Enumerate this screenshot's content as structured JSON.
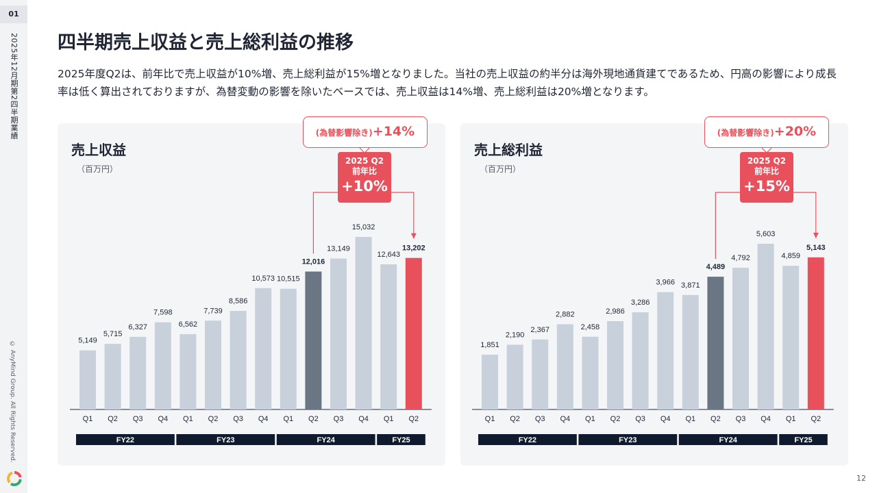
{
  "page_number": "01",
  "side_period": "2025年12月期第2四半期業績",
  "copyright": "© AnyMind Group. All Rights Reserved.",
  "title": "四半期売上収益と売上総利益の推移",
  "description": "2025年度Q2は、前年比で売上収益が10%増、売上総利益が15%増となりました。当社の売上収益の約半分は海外現地通貨建てであるため、円高の影響により成長率は低く算出されておりますが、為替変動の影響を除いたベースでは、売上収益は14%増、売上総利益は20%増となります。",
  "slide_number": "12",
  "colors": {
    "bar_default": "#c8d1db",
    "bar_prev_year": "#6b7684",
    "bar_current": "#e8515b",
    "accent": "#e8515b",
    "fy_band": "#0f1a2e"
  },
  "chart_data": [
    {
      "type": "bar",
      "title": "売上収益",
      "unit": "（百万円）",
      "categories": [
        "Q1",
        "Q2",
        "Q3",
        "Q4",
        "Q1",
        "Q2",
        "Q3",
        "Q4",
        "Q1",
        "Q2",
        "Q3",
        "Q4",
        "Q1",
        "Q2"
      ],
      "values": [
        5149,
        5715,
        6327,
        7598,
        6562,
        7739,
        8586,
        10573,
        10515,
        12016,
        13149,
        15032,
        12643,
        13202
      ],
      "labels": [
        "5,149",
        "5,715",
        "6,327",
        "7,598",
        "6,562",
        "7,739",
        "8,586",
        "10,573",
        "10,515",
        "12,016",
        "13,149",
        "15,032",
        "12,643",
        "13,202"
      ],
      "fiscal_years": [
        {
          "label": "FY22",
          "span": 4
        },
        {
          "label": "FY23",
          "span": 4
        },
        {
          "label": "FY24",
          "span": 4
        },
        {
          "label": "FY25",
          "span": 2
        }
      ],
      "highlight": {
        "prev_index": 9,
        "current_index": 13
      },
      "yoy": {
        "line1": "2025 Q2",
        "line2": "前年比",
        "value": "+10%"
      },
      "fx_adjusted": {
        "label": "(為替影響除き)",
        "value": "+14%"
      },
      "ylim": [
        0,
        15032
      ]
    },
    {
      "type": "bar",
      "title": "売上総利益",
      "unit": "（百万円）",
      "categories": [
        "Q1",
        "Q2",
        "Q3",
        "Q4",
        "Q1",
        "Q2",
        "Q3",
        "Q4",
        "Q1",
        "Q2",
        "Q3",
        "Q4",
        "Q1",
        "Q2"
      ],
      "values": [
        1851,
        2190,
        2367,
        2882,
        2458,
        2986,
        3286,
        3966,
        3871,
        4489,
        4792,
        5603,
        4859,
        5143
      ],
      "labels": [
        "1,851",
        "2,190",
        "2,367",
        "2,882",
        "2,458",
        "2,986",
        "3,286",
        "3,966",
        "3,871",
        "4,489",
        "4,792",
        "5,603",
        "4,859",
        "5,143"
      ],
      "fiscal_years": [
        {
          "label": "FY22",
          "span": 4
        },
        {
          "label": "FY23",
          "span": 4
        },
        {
          "label": "FY24",
          "span": 4
        },
        {
          "label": "FY25",
          "span": 2
        }
      ],
      "highlight": {
        "prev_index": 9,
        "current_index": 13
      },
      "yoy": {
        "line1": "2025 Q2",
        "line2": "前年比",
        "value": "+15%"
      },
      "fx_adjusted": {
        "label": "(為替影響除き)",
        "value": "+20%"
      },
      "ylim": [
        0,
        5603
      ]
    }
  ]
}
